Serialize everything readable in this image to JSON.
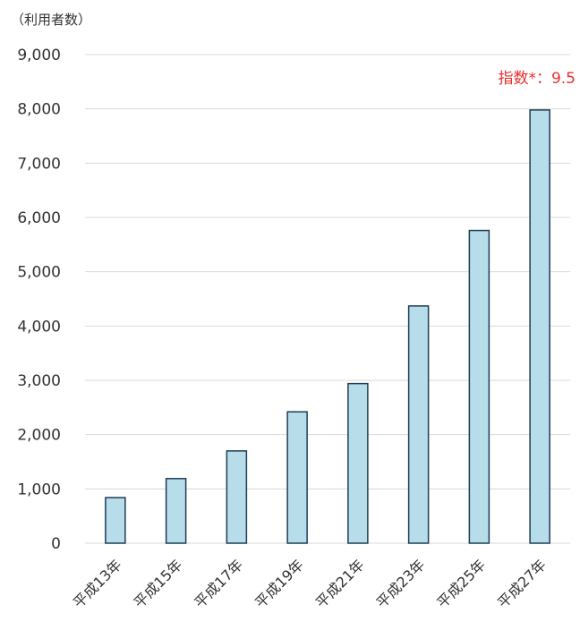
{
  "chart_data": {
    "type": "bar",
    "ylabel": "（利用者数）",
    "xlabel": "",
    "categories": [
      "平成13年",
      "平成15年",
      "平成17年",
      "平成19年",
      "平成21年",
      "平成23年",
      "平成25年",
      "平成27年"
    ],
    "values": [
      840,
      1190,
      1700,
      2420,
      2940,
      4370,
      5760,
      7980
    ],
    "ylim": [
      0,
      9000
    ],
    "yticks": [
      "0",
      "1,000",
      "2,000",
      "3,000",
      "4,000",
      "5,000",
      "6,000",
      "7,000",
      "8,000",
      "9,000"
    ],
    "grid": true,
    "annotation": "指数*：9.5",
    "colors": {
      "bar_fill": "#b7dcea",
      "bar_stroke": "#1f3d55",
      "grid": "#d9d9d9",
      "annotation": "#e8312f"
    }
  }
}
